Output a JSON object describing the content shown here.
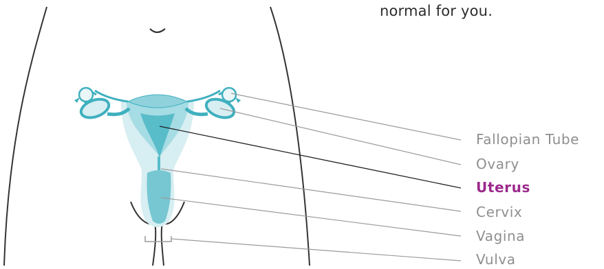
{
  "intro_text": "normal for you.",
  "labels": [
    {
      "id": "fallopian-tube",
      "text": "Fallopian Tube",
      "active": false
    },
    {
      "id": "ovary",
      "text": "Ovary",
      "active": false
    },
    {
      "id": "uterus",
      "text": "Uterus",
      "active": true
    },
    {
      "id": "cervix",
      "text": "Cervix",
      "active": false
    },
    {
      "id": "vagina",
      "text": "Vagina",
      "active": false
    },
    {
      "id": "vulva",
      "text": "Vulva",
      "active": false
    }
  ],
  "colors": {
    "outline": "#333333",
    "organ_light": "#d7eef2",
    "organ_mid": "#a6dce4",
    "organ_dark": "#3fb0bf",
    "leader_line": "#9a9a9a",
    "active_label": "#9c2a8c",
    "label": "#8f8f8f"
  }
}
